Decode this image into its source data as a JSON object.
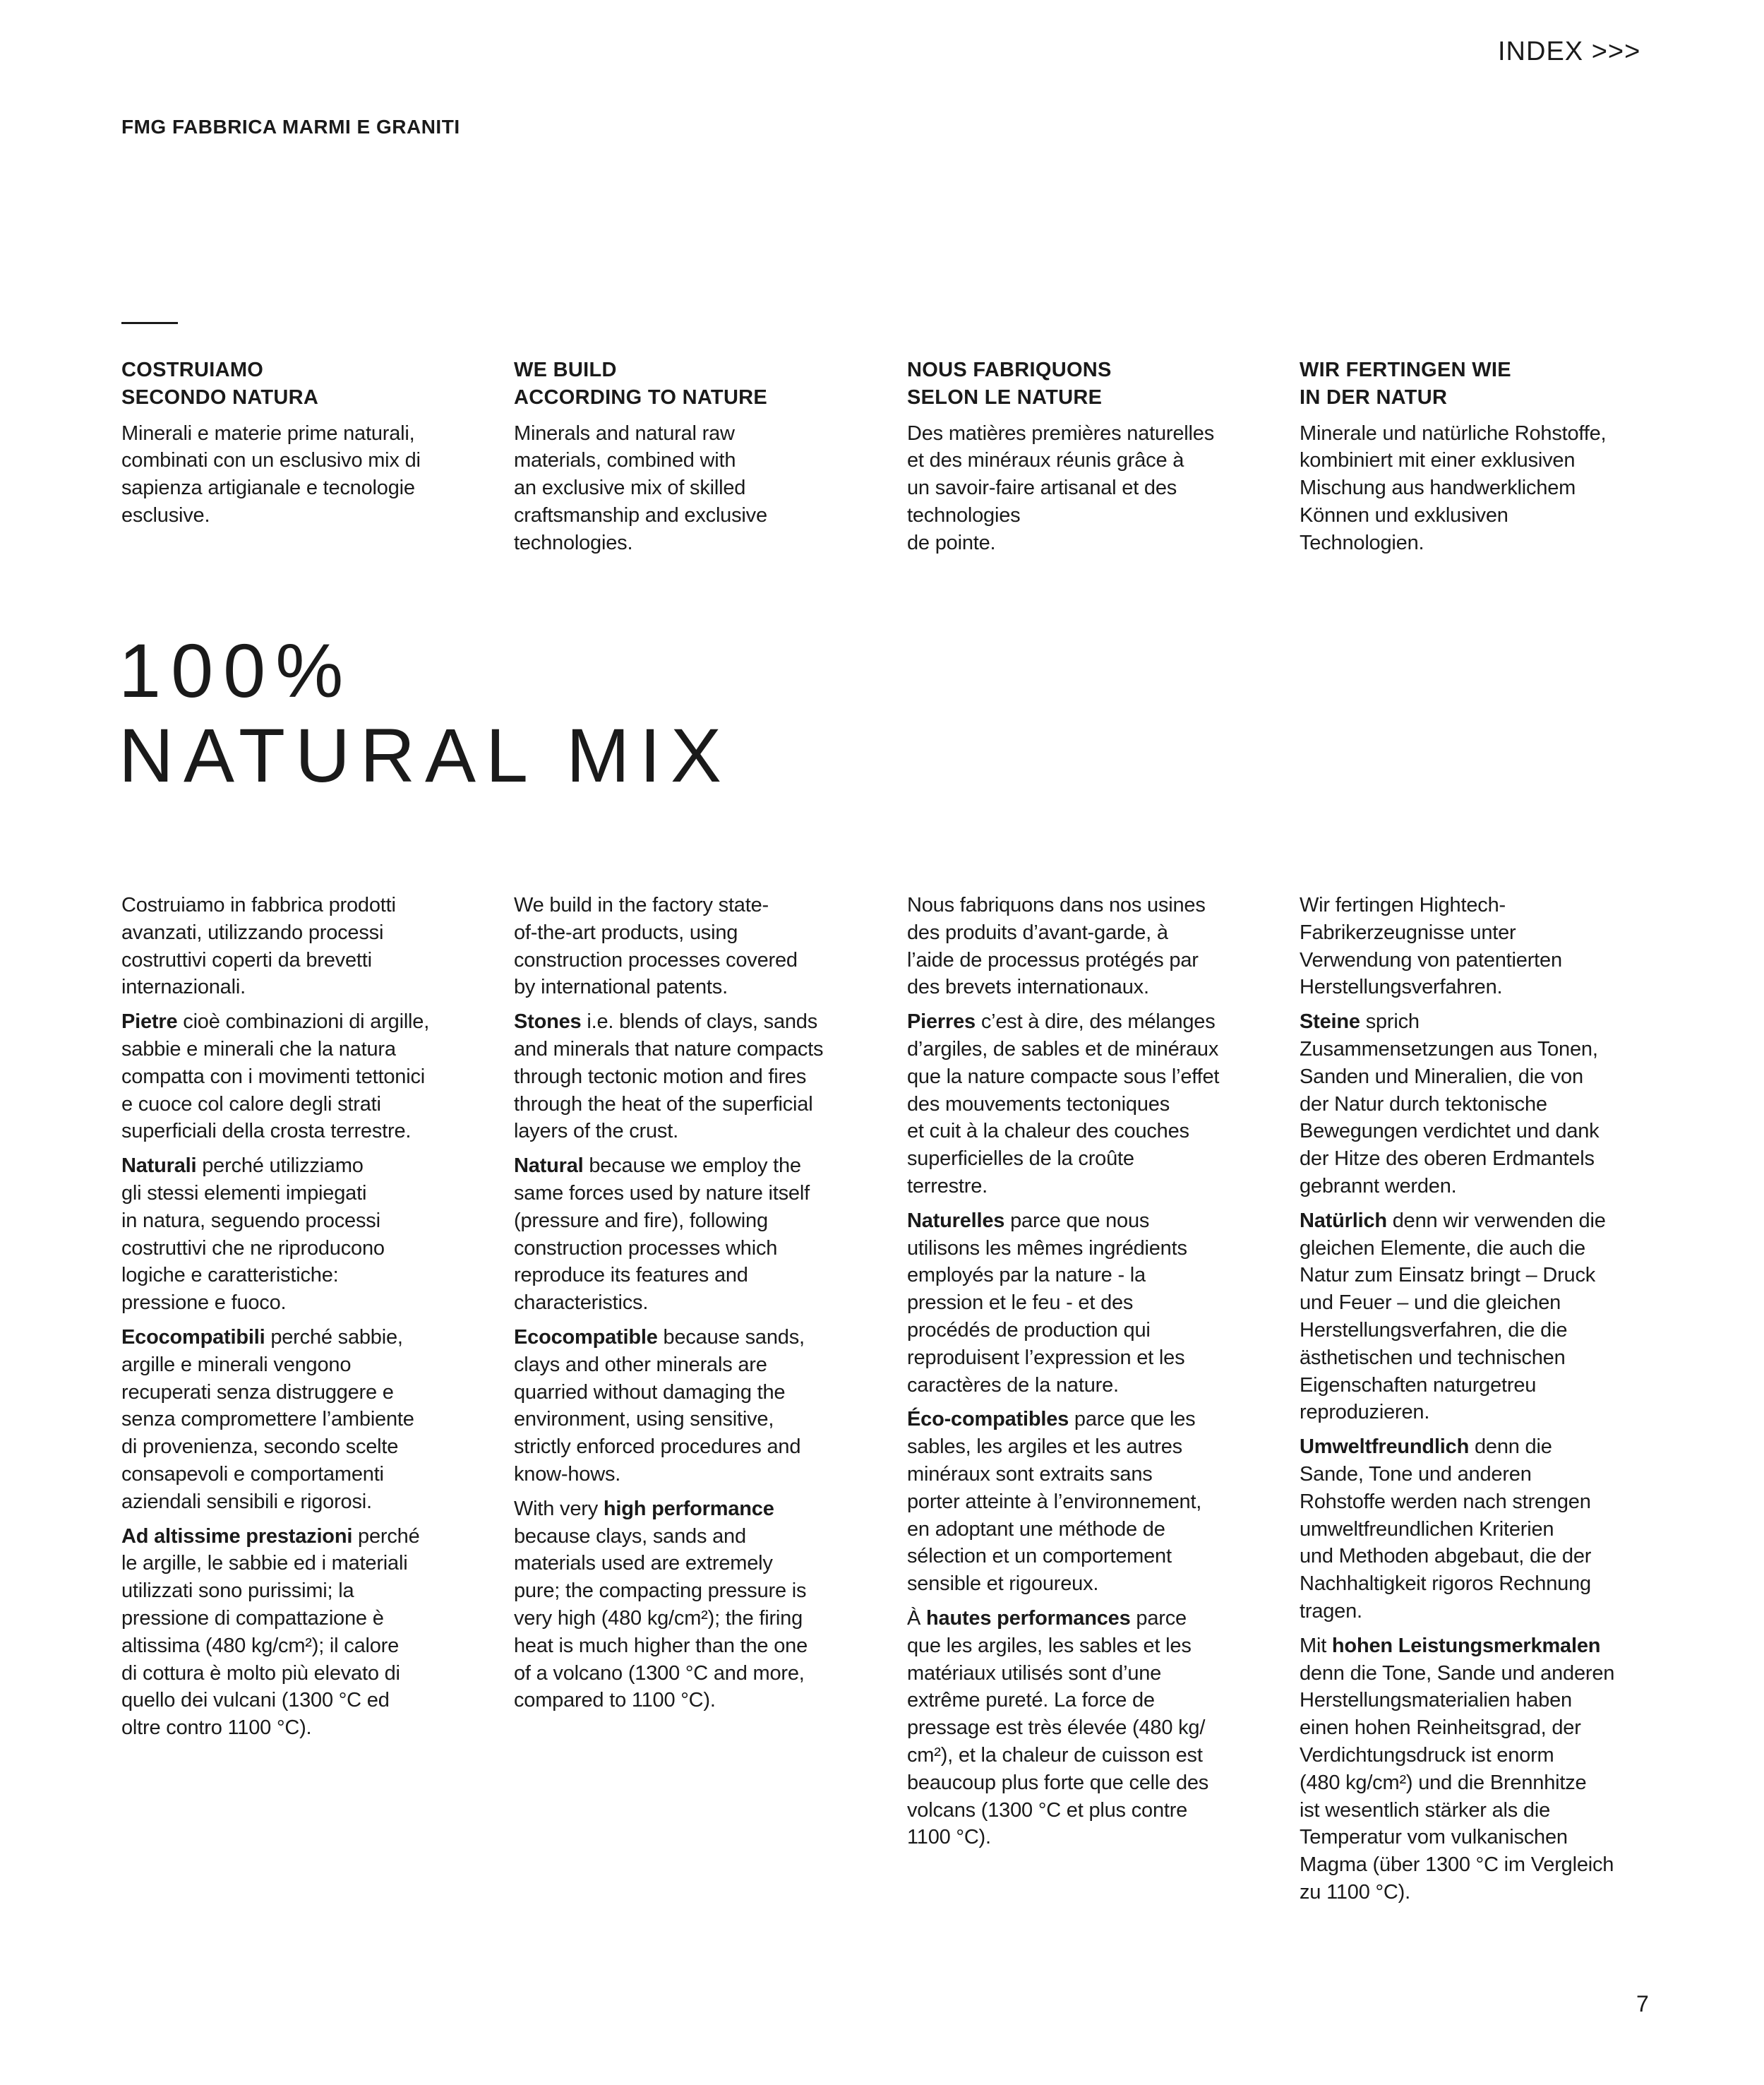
{
  "header": {
    "brand": "FMG FABBRICA MARMI E GRANITI",
    "index_link": "INDEX >>>"
  },
  "intro_columns": [
    {
      "heading": [
        "COSTRUIAMO",
        "SECONDO NATURA"
      ],
      "body": [
        "Minerali e materie prime naturali,",
        "combinati con un esclusivo mix di",
        "sapienza artigianale e tecnologie",
        "esclusive."
      ]
    },
    {
      "heading": [
        "WE BUILD",
        "ACCORDING TO NATURE"
      ],
      "body": [
        "Minerals and natural raw",
        "materials, combined with",
        "an exclusive mix of skilled",
        "craftsmanship and exclusive",
        "technologies."
      ]
    },
    {
      "heading": [
        "NOUS FABRIQUONS",
        "SELON LE NATURE"
      ],
      "body": [
        "Des matières premières naturelles",
        "et des minéraux réunis grâce à",
        "un savoir-faire artisanal et des",
        "technologies",
        "de pointe."
      ]
    },
    {
      "heading": [
        "WIR FERTINGEN WIE",
        "IN DER NATUR"
      ],
      "body": [
        "Minerale und natürliche Rohstoffe,",
        "kombiniert mit einer exklusiven",
        "Mischung aus handwerklichem",
        "Können und exklusiven",
        "Technologien."
      ]
    }
  ],
  "title": [
    "100%",
    "NATURAL MIX"
  ],
  "body_columns": [
    {
      "paragraphs": [
        {
          "pre": "",
          "b": "",
          "lines": [
            "Costruiamo in fabbrica prodotti",
            "avanzati, utilizzando processi",
            "costruttivi coperti da brevetti",
            "internazionali."
          ]
        },
        {
          "pre": "",
          "b": "Pietre",
          "lines": [
            " cioè combinazioni di argille,",
            "sabbie e minerali che la natura",
            "compatta con i movimenti tettonici",
            "e cuoce col calore degli strati",
            "superficiali della crosta terrestre."
          ]
        },
        {
          "pre": "",
          "b": "Naturali",
          "lines": [
            " perché utilizziamo",
            "gli stessi elementi impiegati",
            "in natura, seguendo processi",
            "costruttivi che ne riproducono",
            "logiche e caratteristiche:",
            "pressione e fuoco."
          ]
        },
        {
          "pre": "",
          "b": "Ecocompatibili",
          "lines": [
            " perché sabbie,",
            "argille e minerali vengono",
            "recuperati senza distruggere e",
            "senza compromettere l’ambiente",
            "di provenienza, secondo scelte",
            "consapevoli e comportamenti",
            "aziendali sensibili e rigorosi."
          ]
        },
        {
          "pre": "",
          "b": "Ad altissime prestazioni",
          "lines": [
            " perché",
            "le argille, le sabbie ed i materiali",
            "utilizzati sono purissimi; la",
            "pressione di compattazione è",
            "altissima (480 kg/cm²); il calore",
            "di cottura è molto più elevato di",
            "quello dei vulcani (1300 °C ed",
            "oltre contro 1100 °C)."
          ]
        }
      ]
    },
    {
      "paragraphs": [
        {
          "pre": "",
          "b": "",
          "lines": [
            "We build in the factory state-",
            "of-the-art products, using",
            "construction processes covered",
            "by international patents."
          ]
        },
        {
          "pre": "",
          "b": "Stones",
          "lines": [
            " i.e. blends of clays, sands",
            "and minerals that nature compacts",
            "through tectonic motion and fires",
            "through the heat of the superficial",
            "layers of the crust."
          ]
        },
        {
          "pre": "",
          "b": "Natural",
          "lines": [
            " because we employ the",
            "same forces used by nature itself",
            "(pressure and fire), following",
            "construction processes which",
            "reproduce its features and",
            "characteristics."
          ]
        },
        {
          "pre": "",
          "b": "Ecocompatible",
          "lines": [
            " because sands,",
            "clays and other minerals are",
            "quarried without damaging the",
            "environment, using sensitive,",
            "strictly enforced procedures and",
            "know-hows."
          ]
        },
        {
          "pre": "With very ",
          "b": "high performance",
          "lines": [
            "",
            "because clays, sands and",
            "materials used are extremely",
            "pure; the compacting pressure is",
            "very high (480 kg/cm²); the firing",
            "heat is much higher than the one",
            "of a volcano (1300 °C and more,",
            "compared to 1100 °C)."
          ]
        }
      ]
    },
    {
      "paragraphs": [
        {
          "pre": "",
          "b": "",
          "lines": [
            "Nous fabriquons dans nos usines",
            "des produits d’avant-garde, à",
            "l’aide de processus protégés par",
            "des brevets internationaux."
          ]
        },
        {
          "pre": "",
          "b": "Pierres",
          "lines": [
            " c’est à dire, des mélanges",
            "d’argiles, de sables et de minéraux",
            "que la nature compacte sous l’effet",
            "des mouvements tectoniques",
            "et cuit à la chaleur des couches",
            "superficielles de la croûte",
            "terrestre."
          ]
        },
        {
          "pre": "",
          "b": "Naturelles",
          "lines": [
            " parce que nous",
            "utilisons les mêmes ingrédients",
            "employés par la nature - la",
            "pression et le feu - et des",
            "procédés de production qui",
            "reproduisent l’expression et les",
            "caractères de la nature."
          ]
        },
        {
          "pre": "",
          "b": "Éco-compatibles",
          "lines": [
            " parce que les",
            "sables, les argiles et les autres",
            "minéraux sont extraits sans",
            "porter atteinte à l’environnement,",
            "en adoptant une méthode de",
            "sélection et un comportement",
            "sensible et rigoureux."
          ]
        },
        {
          "pre": "À ",
          "b": "hautes performances",
          "lines": [
            " parce",
            "que les argiles, les sables et les",
            "matériaux utilisés sont d’une",
            "extrême pureté. La force de",
            "pressage est très élevée (480 kg/",
            "cm²), et la chaleur de cuisson est",
            "beaucoup plus forte que celle des",
            "volcans (1300 °C et plus contre",
            "1100 °C)."
          ]
        }
      ]
    },
    {
      "paragraphs": [
        {
          "pre": "",
          "b": "",
          "lines": [
            "Wir fertingen Hightech-",
            "Fabrikerzeugnisse unter",
            "Verwendung von patentierten",
            "Herstellungsverfahren."
          ]
        },
        {
          "pre": "",
          "b": "Steine",
          "lines": [
            " sprich",
            "Zusammensetzungen aus Tonen,",
            "Sanden und Mineralien, die von",
            "der Natur durch tektonische",
            "Bewegungen verdichtet und dank",
            "der Hitze des oberen Erdmantels",
            "gebrannt werden."
          ]
        },
        {
          "pre": "",
          "b": "Natürlich",
          "lines": [
            " denn wir verwenden die",
            "gleichen Elemente, die auch die",
            "Natur zum Einsatz bringt – Druck",
            "und Feuer – und die gleichen",
            "Herstellungsverfahren, die die",
            "ästhetischen und technischen",
            "Eigenschaften naturgetreu",
            "reproduzieren."
          ]
        },
        {
          "pre": "",
          "b": "Umweltfreundlich",
          "lines": [
            " denn die",
            "Sande, Tone und anderen",
            "Rohstoffe werden nach strengen",
            "umweltfreundlichen Kriterien",
            "und Methoden abgebaut, die der",
            "Nachhaltigkeit rigoros Rechnung",
            "tragen."
          ]
        },
        {
          "pre": "Mit ",
          "b": "hohen Leistungsmerkmalen",
          "lines": [
            "",
            "denn die Tone, Sande und anderen",
            "Herstellungsmaterialien haben",
            "einen hohen Reinheitsgrad, der",
            "Verdichtungsdruck ist enorm",
            "(480 kg/cm²) und die Brennhitze",
            "ist wesentlich stärker als die",
            "Temperatur vom vulkanischen",
            "Magma (über 1300 °C im Vergleich",
            "zu 1100 °C)."
          ]
        }
      ]
    }
  ],
  "page_number": "7"
}
